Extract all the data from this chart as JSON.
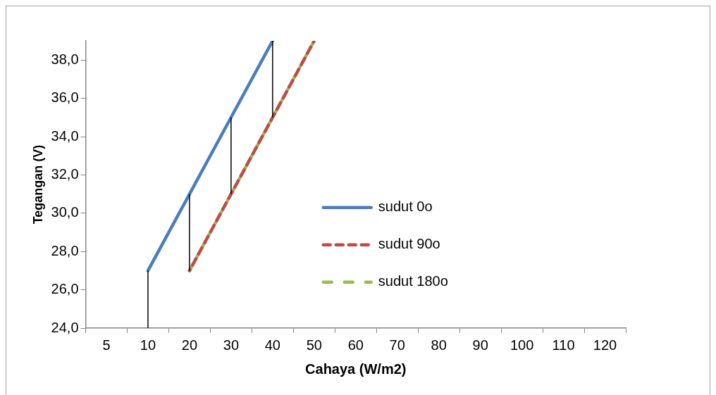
{
  "chart_data": {
    "type": "line",
    "xlabel": "Cahaya (W/m2)",
    "ylabel": "Tegangan (V)",
    "categories": [
      "5",
      "10",
      "20",
      "30",
      "40",
      "50",
      "60",
      "70",
      "80",
      "90",
      "100",
      "110",
      "120"
    ],
    "series": [
      {
        "name": "sudut 0o",
        "color": "#4a7ebb",
        "line_style": "solid",
        "values": [
          null,
          27,
          31,
          35,
          39,
          null,
          null,
          null,
          null,
          null,
          null,
          null,
          null
        ],
        "errors": [
          null,
          [
            24,
            27
          ],
          [
            27,
            31
          ],
          [
            31,
            35
          ],
          [
            35,
            39
          ],
          null,
          null,
          null,
          null,
          null,
          null,
          null,
          null
        ]
      },
      {
        "name": "sudut 90o",
        "color": "#be4b48",
        "line_style": "dashed",
        "values": [
          null,
          null,
          27,
          31,
          35,
          39,
          null,
          null,
          null,
          null,
          null,
          null,
          null
        ]
      },
      {
        "name": "sudut 180o",
        "color": "#98b954",
        "line_style": "dashed",
        "values": [
          null,
          null,
          27,
          31,
          35,
          39,
          null,
          null,
          null,
          null,
          null,
          null,
          null
        ]
      }
    ],
    "ylim": [
      24,
      39
    ],
    "yticks": [
      {
        "value": 24,
        "label": "24,0"
      },
      {
        "value": 26,
        "label": "26,0"
      },
      {
        "value": 28,
        "label": "28,0"
      },
      {
        "value": 30,
        "label": "30,0"
      },
      {
        "value": 32,
        "label": "32,0"
      },
      {
        "value": 34,
        "label": "34,0"
      },
      {
        "value": 36,
        "label": "36,0"
      },
      {
        "value": 38,
        "label": "38,0"
      }
    ],
    "grid": false,
    "legend": "center",
    "marker": "none"
  }
}
